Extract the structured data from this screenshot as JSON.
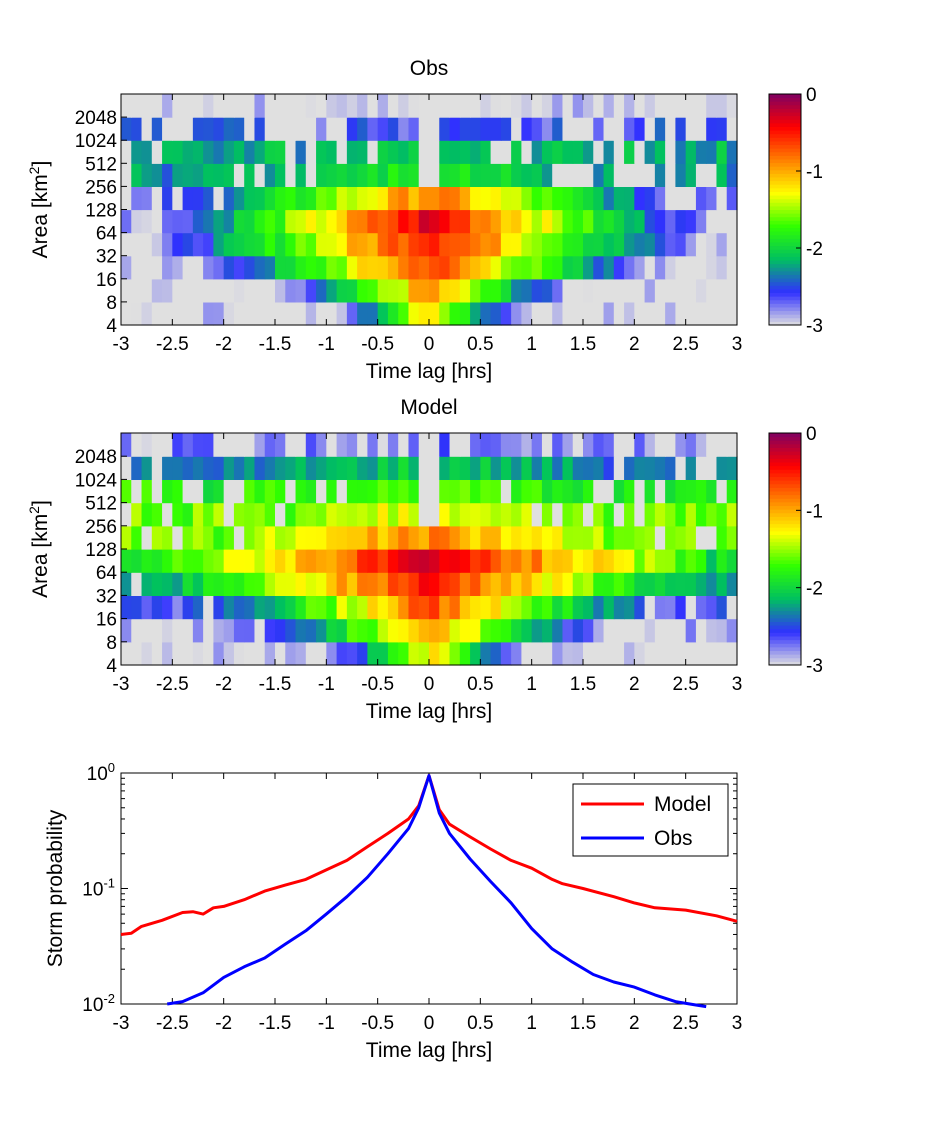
{
  "chart_data": [
    {
      "type": "heatmap",
      "title": "Obs",
      "xlabel": "Time lag [hrs]",
      "ylabel_main": "Area [km",
      "ylabel_sup": "2",
      "ylabel_end": "]",
      "xlim": [
        -3,
        3
      ],
      "x_ticks": [
        -3,
        -2.5,
        -2,
        -1.5,
        -1,
        -0.5,
        0,
        0.5,
        1,
        1.5,
        2,
        2.5,
        3
      ],
      "y_ticks": [
        "4",
        "8",
        "16",
        "32",
        "64",
        "128",
        "256",
        "512",
        "1024",
        "2048"
      ],
      "value_range": [
        -3,
        0
      ],
      "colorbar_ticks": [
        "0",
        "-1",
        "-2",
        "-3"
      ],
      "colormap": [
        "#e0e0e0",
        "#3030ff",
        "#00c060",
        "#30ff00",
        "#ffff00",
        "#ff8000",
        "#ff0000",
        "#800060"
      ],
      "profile": {
        "peak": [
          -1.1,
          -0.9,
          -0.6,
          -0.4,
          -0.3,
          -0.8,
          -1.7,
          -2.0,
          -2.6,
          -3.0
        ],
        "decay": [
          2.2,
          1.5,
          1.05,
          0.95,
          0.95,
          0.8,
          0.45,
          0.25,
          0.15,
          0.1
        ],
        "floor": [
          -3,
          -3,
          -3,
          -3,
          -2.8,
          -2.6,
          -2.3,
          -2.2,
          -2.6,
          -3
        ]
      }
    },
    {
      "type": "heatmap",
      "title": "Model",
      "xlabel": "Time lag [hrs]",
      "ylabel_main": "Area [km",
      "ylabel_sup": "2",
      "ylabel_end": "]",
      "xlim": [
        -3,
        3
      ],
      "x_ticks": [
        -3,
        -2.5,
        -2,
        -1.5,
        -1,
        -0.5,
        0,
        0.5,
        1,
        1.5,
        2,
        2.5,
        3
      ],
      "y_ticks": [
        "4",
        "8",
        "16",
        "32",
        "64",
        "128",
        "256",
        "512",
        "1024",
        "2048"
      ],
      "value_range": [
        -3,
        0
      ],
      "colorbar_ticks": [
        "0",
        "-1",
        "-2",
        "-3"
      ],
      "colormap": [
        "#e0e0e0",
        "#3030ff",
        "#00c060",
        "#30ff00",
        "#ffff00",
        "#ff8000",
        "#ff0000",
        "#800060"
      ],
      "profile": {
        "peak": [
          -1.2,
          -0.9,
          -0.7,
          -0.45,
          -0.35,
          -0.9,
          -1.3,
          -1.6,
          -2.0,
          -2.7
        ],
        "decay": [
          1.8,
          1.2,
          0.9,
          0.7,
          0.55,
          0.35,
          0.2,
          0.18,
          0.2,
          0.2
        ],
        "floor": [
          -3,
          -2.9,
          -2.6,
          -2.3,
          -2.0,
          -1.6,
          -1.6,
          -1.8,
          -2.4,
          -2.8
        ]
      }
    },
    {
      "type": "line",
      "xlabel": "Time lag [hrs]",
      "ylabel": "Storm probability",
      "xlim": [
        -3,
        3
      ],
      "ylim": [
        0.01,
        1
      ],
      "y_scale": "log",
      "x_ticks": [
        -3,
        -2.5,
        -2,
        -1.5,
        -1,
        -0.5,
        0,
        0.5,
        1,
        1.5,
        2,
        2.5,
        3
      ],
      "y_ticks": [
        {
          "base": "10",
          "exp": "-2"
        },
        {
          "base": "10",
          "exp": "-1"
        },
        {
          "base": "10",
          "exp": "0"
        }
      ],
      "legend_position": "top-right",
      "series": [
        {
          "name": "Model",
          "color": "#ff0000",
          "x": [
            -3,
            -2.9,
            -2.8,
            -2.6,
            -2.4,
            -2.3,
            -2.2,
            -2.1,
            -2.0,
            -1.8,
            -1.6,
            -1.4,
            -1.2,
            -1.0,
            -0.8,
            -0.6,
            -0.4,
            -0.2,
            -0.1,
            0,
            0.1,
            0.2,
            0.4,
            0.6,
            0.8,
            1.0,
            1.2,
            1.3,
            1.5,
            1.8,
            2.0,
            2.2,
            2.5,
            2.8,
            3.0
          ],
          "y": [
            0.04,
            0.041,
            0.047,
            0.053,
            0.062,
            0.063,
            0.06,
            0.068,
            0.07,
            0.08,
            0.095,
            0.107,
            0.12,
            0.145,
            0.175,
            0.23,
            0.3,
            0.4,
            0.52,
            0.95,
            0.48,
            0.36,
            0.28,
            0.22,
            0.175,
            0.15,
            0.12,
            0.11,
            0.1,
            0.085,
            0.075,
            0.068,
            0.065,
            0.058,
            0.052
          ]
        },
        {
          "name": "Obs",
          "color": "#0000ff",
          "x": [
            -2.55,
            -2.4,
            -2.2,
            -2.0,
            -1.8,
            -1.6,
            -1.4,
            -1.2,
            -1.0,
            -0.8,
            -0.6,
            -0.4,
            -0.2,
            -0.1,
            0,
            0.1,
            0.2,
            0.4,
            0.6,
            0.8,
            1.0,
            1.2,
            1.4,
            1.6,
            1.8,
            2.0,
            2.2,
            2.4,
            2.6,
            2.7
          ],
          "y": [
            0.01,
            0.0105,
            0.0125,
            0.017,
            0.021,
            0.025,
            0.033,
            0.043,
            0.06,
            0.085,
            0.125,
            0.2,
            0.33,
            0.5,
            0.95,
            0.45,
            0.3,
            0.18,
            0.115,
            0.075,
            0.045,
            0.03,
            0.023,
            0.018,
            0.0155,
            0.014,
            0.012,
            0.0105,
            0.0098,
            0.0095
          ]
        }
      ]
    }
  ]
}
